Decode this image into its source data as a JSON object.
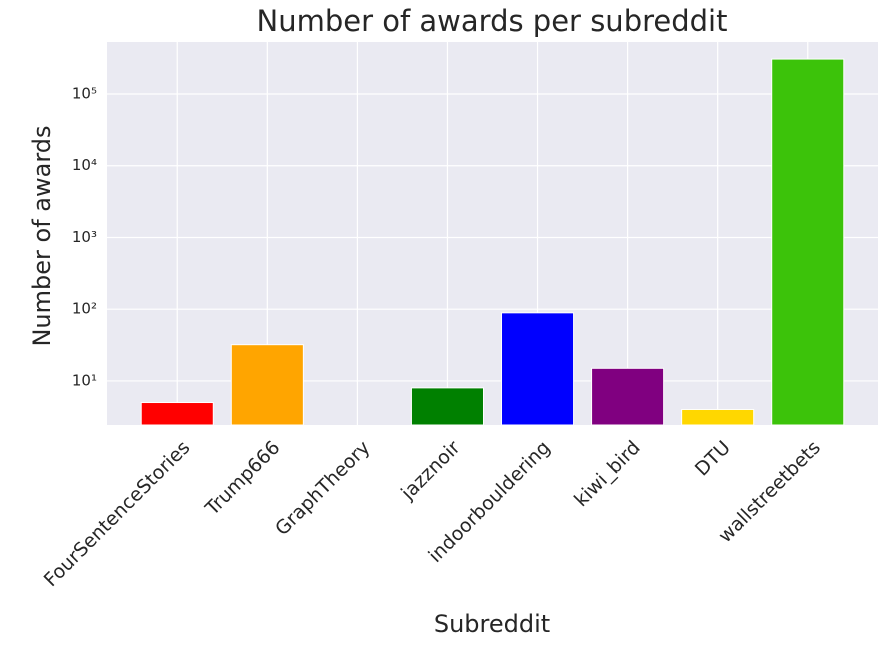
{
  "chart_data": {
    "type": "bar",
    "title": "Number of awards per subreddit",
    "x_label": "Subreddit",
    "y_label": "Number of awards",
    "categories": [
      "FourSentenceStories",
      "Trump666",
      "GraphTheory",
      "jazznoir",
      "indoorbouldering",
      "kiwi_bird",
      "DTU",
      "wallstreetbets"
    ],
    "values": [
      5,
      32,
      0,
      8,
      89,
      15,
      4,
      307000
    ],
    "colors": [
      "#ff0000",
      "#ffa500",
      null,
      "#008000",
      "#0000ff",
      "#800080",
      "#ffd700",
      "#3cc30a"
    ],
    "log_scale": true,
    "ylim": [
      2.43,
      531000
    ],
    "yticks": [
      {
        "value": 10,
        "label": "10¹"
      },
      {
        "value": 100,
        "label": "10²"
      },
      {
        "value": 1000,
        "label": "10³"
      },
      {
        "value": 10000,
        "label": "10⁴"
      },
      {
        "value": 100000,
        "label": "10⁵"
      }
    ],
    "grid": true
  }
}
